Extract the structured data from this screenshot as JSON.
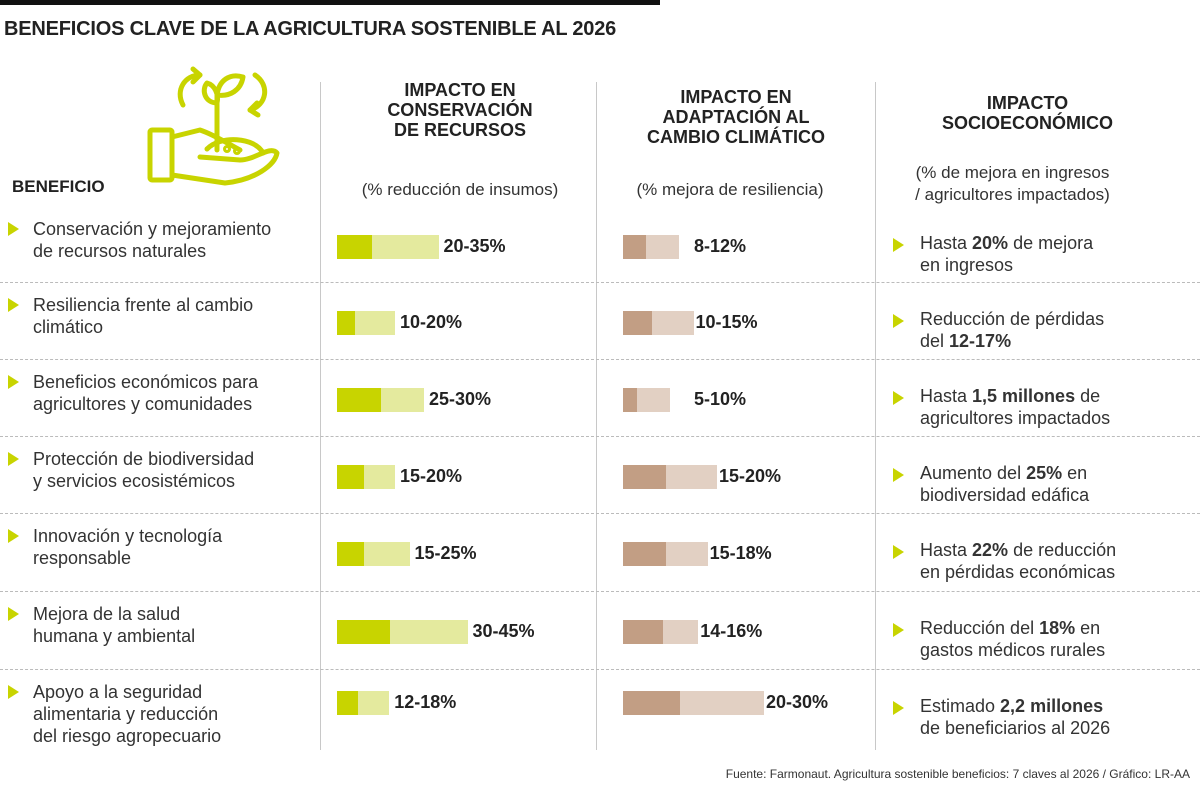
{
  "title": "BENEFICIOS CLAVE DE LA AGRICULTURA SOSTENIBLE AL 2026",
  "benefit_header": "BENEFICIO",
  "columns": [
    {
      "title": [
        "IMPACTO EN",
        "CONSERVACIÓN",
        "DE RECURSOS"
      ],
      "subtitle": "(% reducción de insumos)"
    },
    {
      "title": [
        "IMPACTO EN",
        "ADAPTACIÓN AL",
        "CAMBIO CLIMÁTICO"
      ],
      "subtitle": "(% mejora de resiliencia)"
    },
    {
      "title": [
        "IMPACTO",
        "SOCIOECONÓMICO"
      ],
      "subtitle": [
        "(% de mejora en ingresos",
        "/ agricultores impactados)"
      ]
    }
  ],
  "colors": {
    "green": "#c8d400",
    "green_light": "#e4ea9e",
    "brown": "#c29e84",
    "brown_light": "#e2d0c3",
    "arrow": "#c8d400"
  },
  "icon": "hand-holding-sprout-icon",
  "chart_data": {
    "type": "table",
    "rows": [
      {
        "benefit": [
          "Conservación y mejoramiento",
          "de recursos naturales"
        ],
        "conservation": "20-35%",
        "conservation_range": [
          20,
          35
        ],
        "adaptation": "8-12%",
        "adaptation_range": [
          8,
          12
        ],
        "socio": [
          [
            "Hasta ",
            ""
          ],
          [
            "20%",
            "b"
          ],
          [
            " de mejora",
            ""
          ],
          [
            "\nen ingresos",
            ""
          ]
        ]
      },
      {
        "benefit": [
          "Resiliencia frente al cambio",
          "climático"
        ],
        "conservation": "10-20%",
        "conservation_range": [
          10,
          20
        ],
        "adaptation": "10-15%",
        "adaptation_range": [
          10,
          15
        ],
        "socio": [
          [
            "Reducción de pérdidas\ndel ",
            ""
          ],
          [
            "12-17%",
            "b"
          ]
        ]
      },
      {
        "benefit": [
          "Beneficios económicos para",
          "agricultores y comunidades"
        ],
        "conservation": "25-30%",
        "conservation_range": [
          25,
          30
        ],
        "adaptation": "5-10%",
        "adaptation_range": [
          5,
          10
        ],
        "socio": [
          [
            "Hasta ",
            ""
          ],
          [
            "1,5 millones",
            "b"
          ],
          [
            " de\nagricultores impactados",
            ""
          ]
        ]
      },
      {
        "benefit": [
          "Protección de biodiversidad",
          "y servicios ecosistémicos"
        ],
        "conservation": "15-20%",
        "conservation_range": [
          15,
          20
        ],
        "adaptation": "15-20%",
        "adaptation_range": [
          15,
          20
        ],
        "socio": [
          [
            "Aumento del ",
            ""
          ],
          [
            "25%",
            "b"
          ],
          [
            " en\nbiodiversidad edáfica",
            ""
          ]
        ]
      },
      {
        "benefit": [
          "Innovación y tecnología",
          "responsable"
        ],
        "conservation": "15-25%",
        "conservation_range": [
          15,
          25
        ],
        "adaptation": "15-18%",
        "adaptation_range": [
          15,
          18
        ],
        "socio": [
          [
            "Hasta ",
            ""
          ],
          [
            "22%",
            "b"
          ],
          [
            " de reducción\nen pérdidas económicas",
            ""
          ]
        ]
      },
      {
        "benefit": [
          "Mejora de la salud",
          "humana y ambiental"
        ],
        "conservation": "30-45%",
        "conservation_range": [
          30,
          45
        ],
        "adaptation": "14-16%",
        "adaptation_range": [
          14,
          16
        ],
        "socio": [
          [
            "Reducción del ",
            ""
          ],
          [
            "18%",
            "b"
          ],
          [
            " en\ngastos médicos rurales",
            ""
          ]
        ]
      },
      {
        "benefit": [
          "Apoyo a la seguridad",
          "alimentaria y reducción",
          "del riesgo agropecuario"
        ],
        "conservation": "12-18%",
        "conservation_range": [
          12,
          18
        ],
        "adaptation": "20-30%",
        "adaptation_range": [
          20,
          30
        ],
        "socio": [
          [
            "Estimado ",
            ""
          ],
          [
            "2,2 millones",
            "b"
          ],
          [
            "\nde beneficiarios al 2026",
            ""
          ]
        ]
      }
    ]
  },
  "source": "Fuente: Farmonaut. Agricultura sostenible beneficios: 7 claves al 2026 / Gráfico: LR-AA"
}
